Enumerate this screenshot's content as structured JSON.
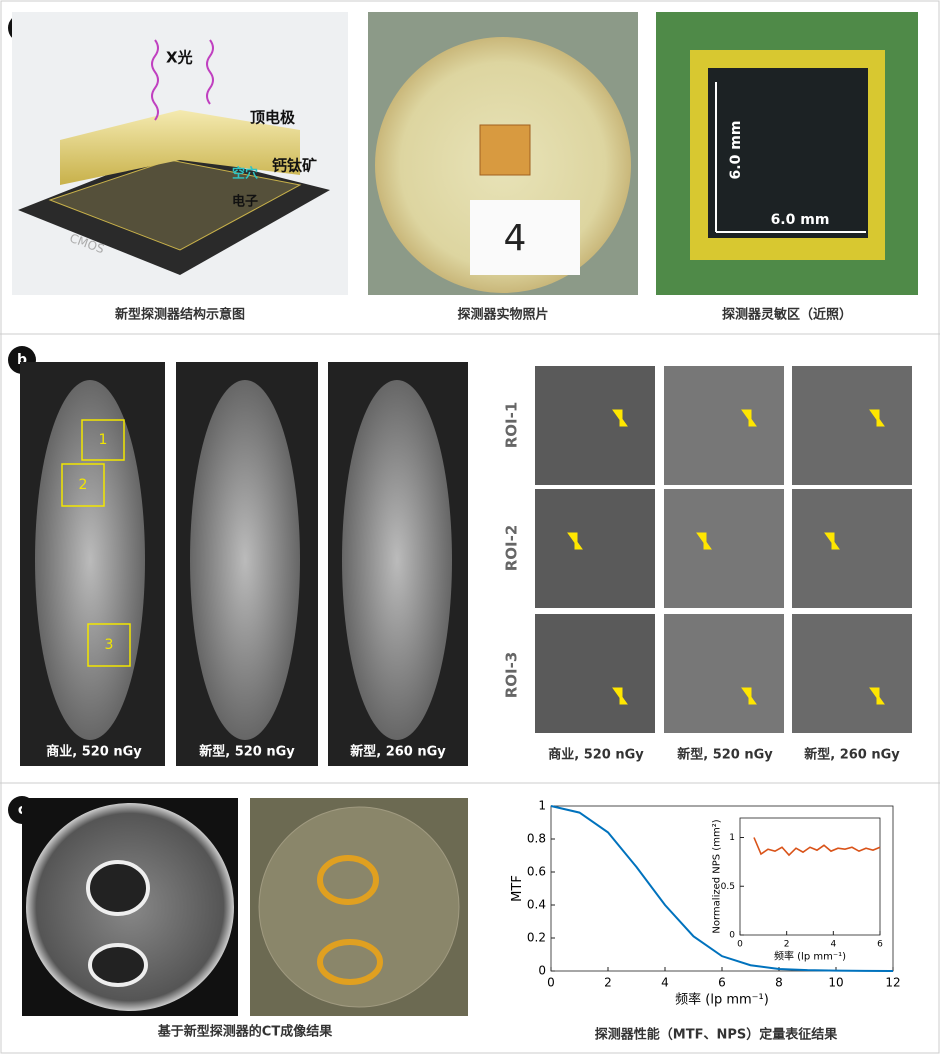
{
  "panel_a": {
    "label": "a",
    "annotations": {
      "xray": "X光",
      "top_electrode": "顶电极",
      "perovskite": "钙钛矿",
      "hole": "空穴",
      "electron": "电子",
      "cmos": "CMOS",
      "sample_number": "4",
      "height": "6.0 mm",
      "width": "6.0 mm"
    },
    "captions": [
      "新型探测器结构示意图",
      "探测器实物照片",
      "探测器灵敏区（近照）"
    ]
  },
  "panel_b": {
    "label": "b",
    "roi_boxes": [
      "1",
      "2",
      "3"
    ],
    "image_labels": [
      "商业, 520 nGy",
      "新型, 520 nGy",
      "新型, 260 nGy"
    ],
    "roi_rows": [
      "ROI-1",
      "ROI-2",
      "ROI-3"
    ],
    "roi_columns": [
      "商业, 520 nGy",
      "新型, 520 nGy",
      "新型, 260 nGy"
    ]
  },
  "panel_c": {
    "label": "c",
    "captions": [
      "基于新型探测器的CT成像结果",
      "探测器性能（MTF、NPS）定量表征结果"
    ]
  },
  "chart_data": [
    {
      "type": "line",
      "x_label": "频率 (lp mm⁻¹)",
      "y_label": "MTF",
      "x": [
        0,
        1,
        2,
        3,
        4,
        5,
        6,
        7,
        8,
        9,
        10,
        11,
        12
      ],
      "values": [
        1,
        0.96,
        0.84,
        0.63,
        0.4,
        0.21,
        0.09,
        0.035,
        0.012,
        0.005,
        0.002,
        0.001,
        0
      ],
      "color": "#0072bd",
      "xlim": [
        0,
        12
      ],
      "xticks": [
        0,
        2,
        4,
        6,
        8,
        10,
        12
      ],
      "ylim": [
        0,
        1
      ],
      "yticks": [
        0,
        0.2,
        0.4,
        0.6,
        0.8,
        1
      ]
    },
    {
      "type": "line",
      "x_label": "频率 (lp mm⁻¹)",
      "y_label": "Normalized NPS (mm²)",
      "x": [
        0.6,
        0.9,
        1.2,
        1.5,
        1.8,
        2.1,
        2.4,
        2.7,
        3.0,
        3.3,
        3.6,
        3.9,
        4.2,
        4.5,
        4.8,
        5.1,
        5.4,
        5.7,
        6.0
      ],
      "values": [
        1.0,
        0.83,
        0.88,
        0.86,
        0.9,
        0.82,
        0.89,
        0.85,
        0.9,
        0.87,
        0.92,
        0.86,
        0.89,
        0.88,
        0.9,
        0.86,
        0.89,
        0.87,
        0.9
      ],
      "color": "#d95319",
      "xlim": [
        0,
        6
      ],
      "xticks": [
        0,
        2,
        4,
        6
      ],
      "ylim": [
        0,
        1.2
      ],
      "yticks": [
        0,
        0.5,
        1
      ]
    }
  ]
}
